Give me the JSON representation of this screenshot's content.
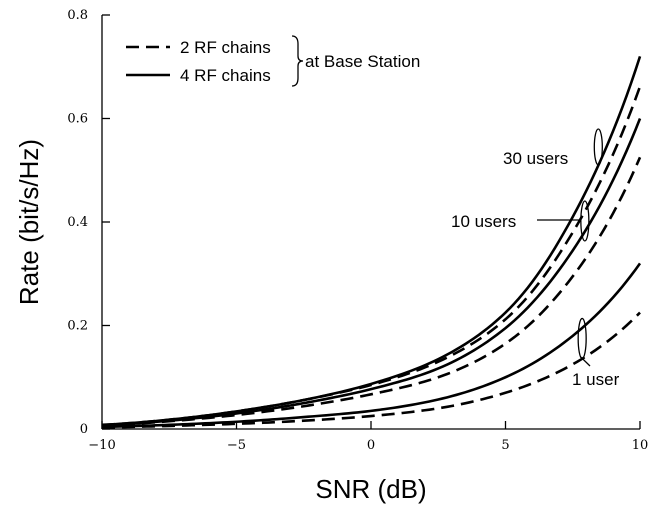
{
  "chart_data": {
    "type": "line",
    "xlabel": "SNR (dB)",
    "ylabel": "Rate (bit/s/Hz)",
    "xlim": [
      -10,
      10
    ],
    "ylim": [
      0,
      0.8
    ],
    "xticks": [
      -10,
      -5,
      0,
      5,
      10
    ],
    "xtick_labels": [
      "−10",
      "−5",
      "0",
      "5",
      "10"
    ],
    "yticks": [
      0,
      0.2,
      0.4,
      0.6,
      0.8
    ],
    "ytick_labels": [
      "0",
      "0.2",
      "0.4",
      "0.6",
      "0.8"
    ],
    "grid": false,
    "legend": {
      "placement": "top-left",
      "entries": [
        {
          "label": "2 RF chains",
          "style": "dashed"
        },
        {
          "label": "4 RF chains",
          "style": "solid"
        }
      ],
      "group_label": "at Base Station"
    },
    "x": [
      -10,
      -7.5,
      -5,
      -2.5,
      0,
      2.5,
      5,
      7.5,
      10
    ],
    "series": [
      {
        "group": "30 users",
        "style": "solid",
        "values": [
          0.008,
          0.018,
          0.034,
          0.056,
          0.087,
          0.135,
          0.225,
          0.41,
          0.72
        ]
      },
      {
        "group": "30 users",
        "style": "dashed",
        "values": [
          0.008,
          0.018,
          0.034,
          0.056,
          0.085,
          0.13,
          0.212,
          0.38,
          0.662
        ]
      },
      {
        "group": "10 users",
        "style": "solid",
        "values": [
          0.007,
          0.016,
          0.03,
          0.05,
          0.077,
          0.117,
          0.195,
          0.345,
          0.6
        ]
      },
      {
        "group": "10 users",
        "style": "dashed",
        "values": [
          0.007,
          0.015,
          0.027,
          0.044,
          0.067,
          0.1,
          0.165,
          0.295,
          0.525
        ]
      },
      {
        "group": "1 user",
        "style": "solid",
        "values": [
          0.004,
          0.008,
          0.014,
          0.023,
          0.035,
          0.057,
          0.1,
          0.18,
          0.32
        ]
      },
      {
        "group": "1 user",
        "style": "dashed",
        "values": [
          0.003,
          0.006,
          0.01,
          0.016,
          0.025,
          0.04,
          0.07,
          0.125,
          0.225
        ]
      }
    ],
    "annotations": [
      {
        "text": "30 users",
        "x": 8.45,
        "y": 0.545
      },
      {
        "text": "10 users",
        "x": 7.95,
        "y": 0.402
      },
      {
        "text": "1 user",
        "x": 7.85,
        "y": 0.175
      }
    ]
  }
}
